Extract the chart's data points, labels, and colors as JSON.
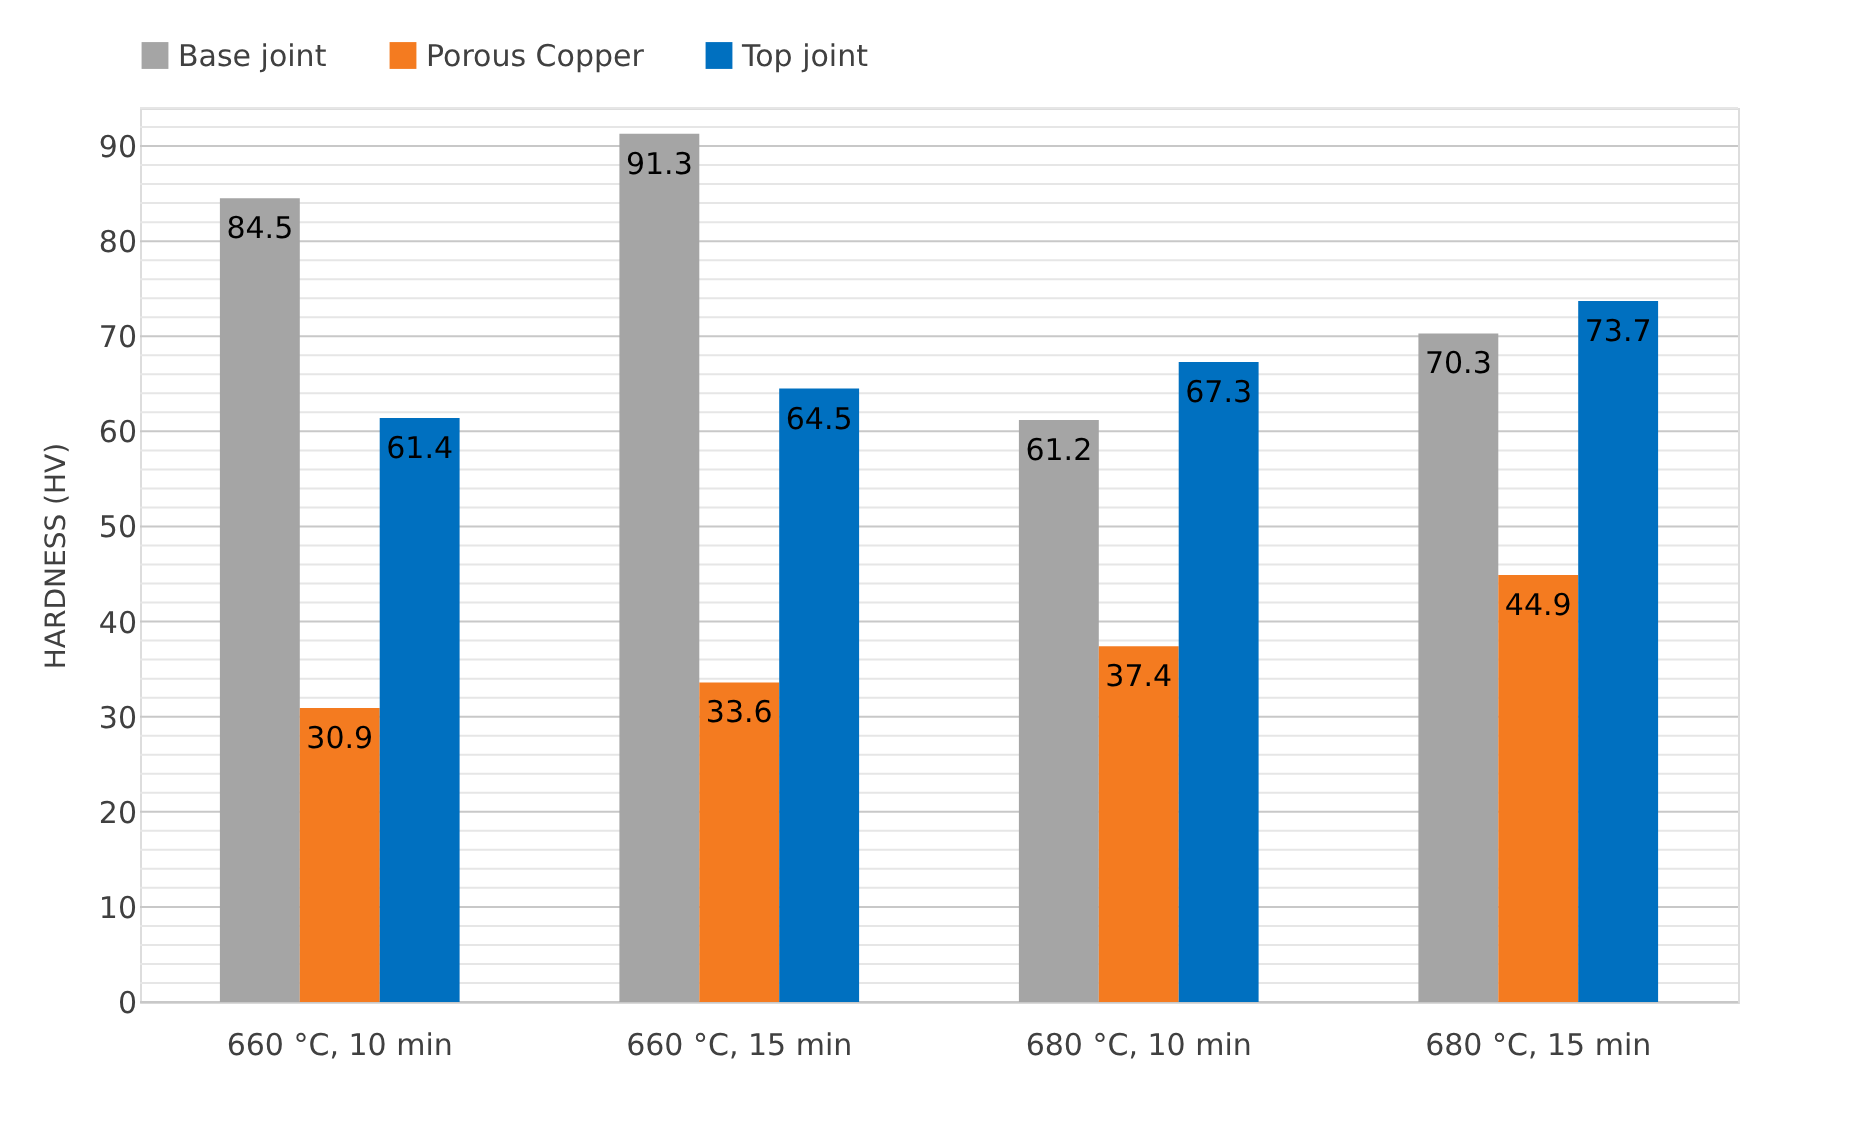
{
  "chart_data": {
    "type": "bar",
    "ylabel": "HARDNESS (HV)",
    "categories": [
      "660 °C, 10 min",
      "660 °C, 15 min",
      "680 °C, 10 min",
      "680 °C, 15 min"
    ],
    "series": [
      {
        "name": "Base joint",
        "color": "#a5a5a5",
        "values": [
          84.5,
          91.3,
          61.2,
          70.3
        ]
      },
      {
        "name": "Porous Copper",
        "color": "#f47b20",
        "values": [
          30.9,
          33.6,
          37.4,
          44.9
        ]
      },
      {
        "name": "Top joint",
        "color": "#0070c0",
        "values": [
          61.4,
          64.5,
          67.3,
          73.7
        ]
      }
    ],
    "ylim": [
      0,
      94
    ],
    "yticks": [
      0,
      {
        "value": 2,
        "label": null
      },
      {
        "value": 4,
        "label": null
      },
      {
        "value": 6,
        "label": null
      },
      {
        "value": 8,
        "label": null
      },
      10,
      {
        "value": 12,
        "label": null
      },
      {
        "value": 14,
        "label": null
      },
      {
        "value": 16,
        "label": null
      },
      {
        "value": 18,
        "label": null
      },
      20,
      {
        "value": 22,
        "label": null
      },
      {
        "value": 24,
        "label": null
      },
      {
        "value": 26,
        "label": null
      },
      {
        "value": 28,
        "label": null
      },
      30,
      {
        "value": 32,
        "label": null
      },
      {
        "value": 34,
        "label": null
      },
      {
        "value": 36,
        "label": null
      },
      {
        "value": 38,
        "label": null
      },
      40,
      {
        "value": 42,
        "label": null
      },
      {
        "value": 44,
        "label": null
      },
      {
        "value": 46,
        "label": null
      },
      {
        "value": 48,
        "label": null
      },
      50,
      {
        "value": 52,
        "label": null
      },
      {
        "value": 54,
        "label": null
      },
      {
        "value": 56,
        "label": null
      },
      {
        "value": 58,
        "label": null
      },
      60,
      {
        "value": 62,
        "label": null
      },
      {
        "value": 64,
        "label": null
      },
      {
        "value": 66,
        "label": null
      },
      {
        "value": 68,
        "label": null
      },
      70,
      {
        "value": 72,
        "label": null
      },
      {
        "value": 74,
        "label": null
      },
      {
        "value": 76,
        "label": null
      },
      {
        "value": 78,
        "label": null
      },
      80,
      {
        "value": 82,
        "label": null
      },
      {
        "value": 84,
        "label": null
      },
      {
        "value": 86,
        "label": null
      },
      {
        "value": 88,
        "label": null
      },
      90,
      {
        "value": 92,
        "label": null
      },
      {
        "value": 94,
        "label": null
      }
    ],
    "grid": "y",
    "legend": "top",
    "data_labels": true
  }
}
